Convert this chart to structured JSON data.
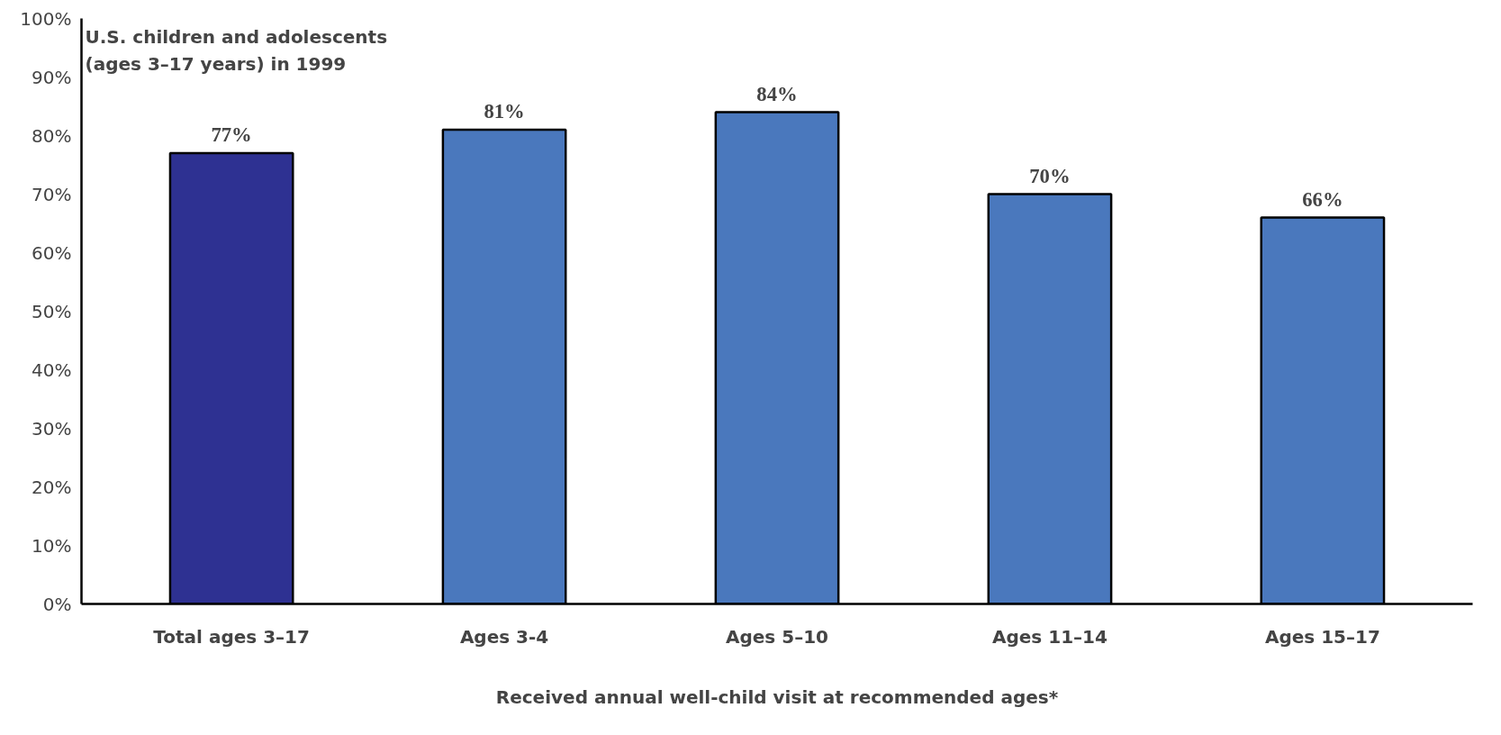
{
  "chart_data": {
    "type": "bar",
    "title": "U.S. children and adolescents\n(ages 3–17 years) in 1999",
    "xlabel": "Received annual well-child visit at recommended ages*",
    "categories": [
      "Total ages 3–17",
      "Ages 3-4",
      "Ages 5–10",
      "Ages 11–14",
      "Ages 15–17"
    ],
    "values": [
      77,
      81,
      84,
      70,
      66
    ],
    "colors": [
      "#2e3192",
      "#4a78bd",
      "#4a78bd",
      "#4a78bd",
      "#4a78bd"
    ],
    "value_labels": [
      "77%",
      "81%",
      "84%",
      "70%",
      "66%"
    ],
    "ylim": [
      0,
      100
    ],
    "yticks": [
      {
        "value": 0,
        "label": "0%"
      },
      {
        "value": 10,
        "label": "10%"
      },
      {
        "value": 20,
        "label": "20%"
      },
      {
        "value": 30,
        "label": "30%"
      },
      {
        "value": 40,
        "label": "40%"
      },
      {
        "value": 50,
        "label": "50%"
      },
      {
        "value": 60,
        "label": "60%"
      },
      {
        "value": 70,
        "label": "70%"
      },
      {
        "value": 80,
        "label": "80%"
      },
      {
        "value": 90,
        "label": "90%"
      },
      {
        "value": 100,
        "label": "100%"
      }
    ],
    "grid": false
  }
}
